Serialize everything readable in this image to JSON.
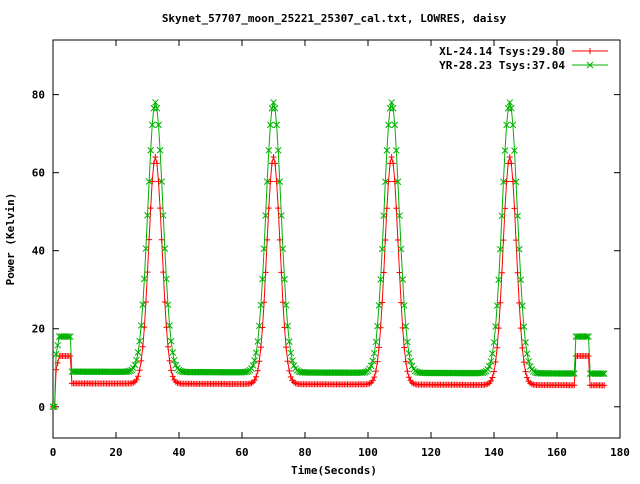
{
  "chart_data": {
    "type": "scatter",
    "title": "Skynet_57707_moon_25221_25307_cal.txt, LOWRES, daisy",
    "xlabel": "Time(Seconds)",
    "ylabel": "Power (Kelvin)",
    "xlim": [
      0,
      180
    ],
    "ylim": [
      -8,
      94
    ],
    "xticks": [
      0,
      20,
      40,
      60,
      80,
      100,
      120,
      140,
      160,
      180
    ],
    "yticks": [
      0,
      20,
      40,
      60,
      80
    ],
    "grid": false,
    "legend_position": "top-right",
    "peak_centers": [
      32.5,
      70,
      107.5,
      145
    ],
    "series": [
      {
        "name": "XL-24.14 Tsys:29.80",
        "color": "#ff0000",
        "marker": "plus",
        "ramp_start": 0,
        "ramp_end": 6,
        "step_low": 13,
        "step_high": 13,
        "baseline": [
          6.0,
          5.5
        ],
        "peak": 64,
        "sigma": 2.1,
        "end_step": 13
      },
      {
        "name": "YR-28.23 Tsys:37.04",
        "color": "#00b000",
        "marker": "cross",
        "ramp_start": 0,
        "ramp_end": 6,
        "step_low": 18,
        "step_high": 18,
        "baseline": [
          9.0,
          8.5
        ],
        "peak": 78,
        "sigma": 2.4,
        "end_step": 18
      }
    ],
    "time_span": [
      0,
      175
    ],
    "end_step_range": [
      166,
      170
    ]
  }
}
